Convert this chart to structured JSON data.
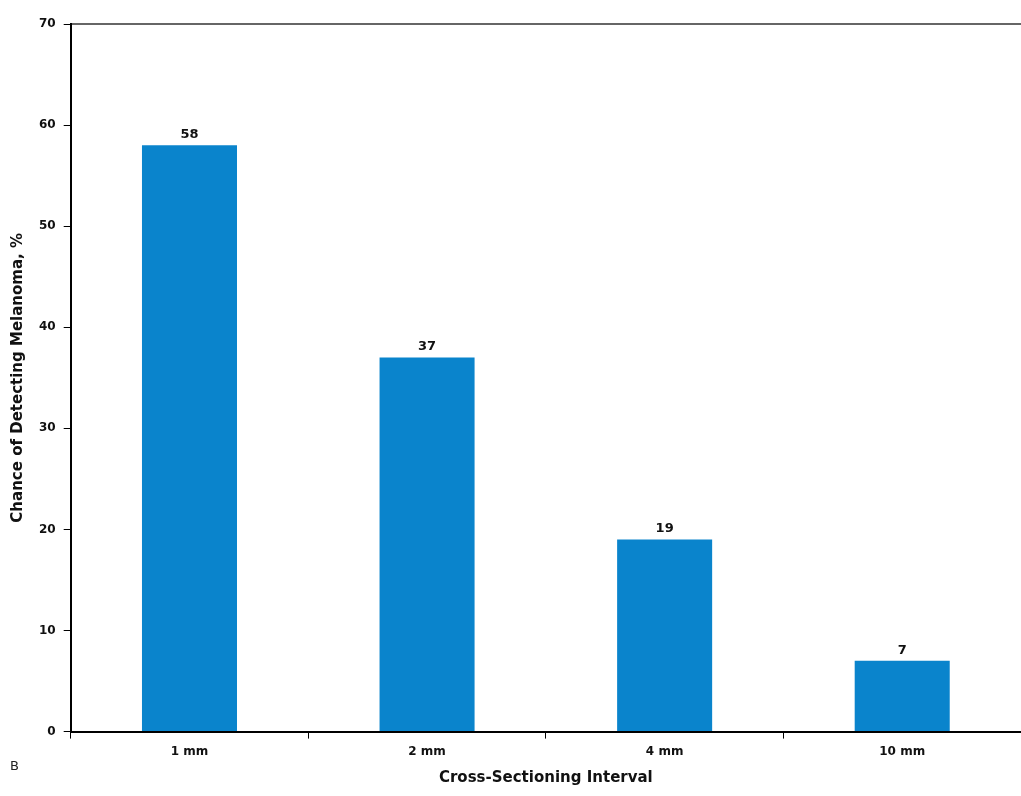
{
  "chart_data": {
    "type": "bar",
    "xlabel": "Cross-Sectioning Interval",
    "ylabel": "Chance of Detecting Melanoma, %",
    "categories": [
      "1 mm",
      "2 mm",
      "4 mm",
      "10 mm"
    ],
    "values": [
      58,
      37,
      19,
      7
    ],
    "color": "#0a84cc",
    "ylim": [
      0,
      70
    ],
    "yticks": [
      0,
      10,
      20,
      30,
      40,
      50,
      60,
      70
    ],
    "grid": false,
    "data_labels": true,
    "annotations": [
      "B"
    ]
  }
}
